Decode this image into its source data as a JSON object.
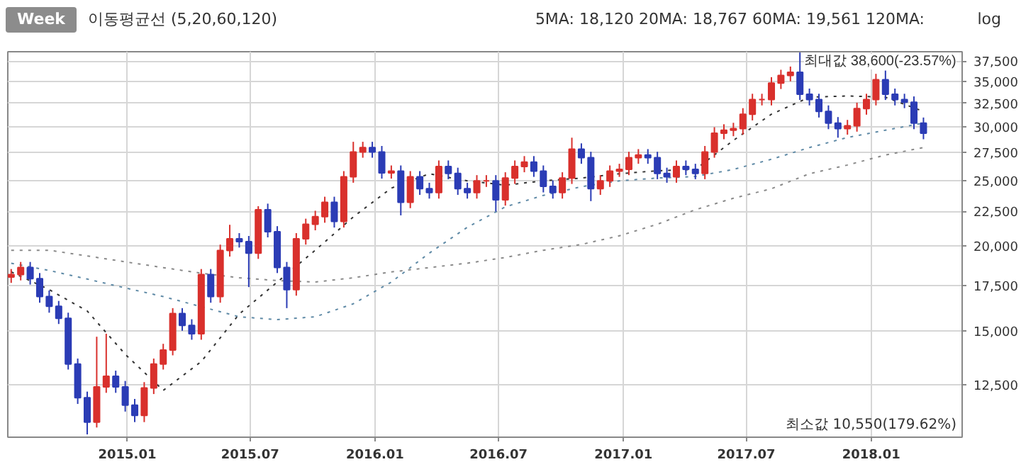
{
  "chart_data": {
    "type": "candlestick",
    "title": "이동평균선 (5,20,60,120)",
    "annotations": [
      "Week",
      "5MA: 18,120 20MA: 18,767 60MA: 19,561 120MA:",
      {
        "text": "최대값 38,600(-23.57%)",
        "x": "2017-09-18",
        "y": 38600
      },
      "최소값 10,550(179.62%)",
      "log"
    ],
    "x": [
      "2014-07-14",
      "2014-07-28",
      "2014-08-11",
      "2014-08-25",
      "2014-09-08",
      "2014-09-22",
      "2014-10-06",
      "2014-10-20",
      "2014-11-03",
      "2014-11-17",
      "2014-12-01",
      "2014-12-15",
      "2014-12-29",
      "2015-01-12",
      "2015-01-26",
      "2015-02-09",
      "2015-02-23",
      "2015-03-09",
      "2015-03-23",
      "2015-04-06",
      "2015-04-20",
      "2015-05-04",
      "2015-05-18",
      "2015-06-01",
      "2015-06-15",
      "2015-06-29",
      "2015-07-13",
      "2015-07-27",
      "2015-08-10",
      "2015-08-24",
      "2015-09-07",
      "2015-09-21",
      "2015-10-05",
      "2015-10-19",
      "2015-11-02",
      "2015-11-16",
      "2015-11-30",
      "2015-12-14",
      "2015-12-28",
      "2016-01-11",
      "2016-01-25",
      "2016-02-08",
      "2016-02-22",
      "2016-03-07",
      "2016-03-21",
      "2016-04-04",
      "2016-04-18",
      "2016-05-02",
      "2016-05-16",
      "2016-05-30",
      "2016-06-13",
      "2016-06-27",
      "2016-07-11",
      "2016-07-25",
      "2016-08-08",
      "2016-08-22",
      "2016-09-05",
      "2016-09-19",
      "2016-10-03",
      "2016-10-17",
      "2016-10-31",
      "2016-11-14",
      "2016-11-28",
      "2016-12-12",
      "2016-12-26",
      "2017-01-09",
      "2017-01-23",
      "2017-02-06",
      "2017-02-20",
      "2017-03-06",
      "2017-03-20",
      "2017-04-03",
      "2017-04-17",
      "2017-05-01",
      "2017-05-15",
      "2017-05-29",
      "2017-06-12",
      "2017-06-26",
      "2017-07-10",
      "2017-07-24",
      "2017-08-07",
      "2017-08-21",
      "2017-09-04",
      "2017-09-18",
      "2017-10-02",
      "2017-10-16",
      "2017-10-30",
      "2017-11-13",
      "2017-11-27",
      "2017-12-11",
      "2017-12-25",
      "2018-01-08",
      "2018-01-22",
      "2018-02-05",
      "2018-02-19",
      "2018-03-05",
      "2018-03-19"
    ],
    "ohlc": [
      [
        18000,
        18500,
        17650,
        18150
      ],
      [
        18150,
        18950,
        17800,
        18600
      ],
      [
        18600,
        18950,
        17550,
        17900
      ],
      [
        17900,
        18250,
        16500,
        16850
      ],
      [
        16850,
        17200,
        15950,
        16300
      ],
      [
        16300,
        16600,
        15350,
        15650
      ],
      [
        15650,
        15950,
        13150,
        13400
      ],
      [
        13400,
        13650,
        11700,
        11950
      ],
      [
        11950,
        12200,
        10550,
        11000
      ],
      [
        11000,
        14700,
        10800,
        12400
      ],
      [
        12400,
        14850,
        12150,
        12850
      ],
      [
        12850,
        13100,
        12150,
        12400
      ],
      [
        12400,
        12650,
        11400,
        11650
      ],
      [
        11650,
        11900,
        11000,
        11250
      ],
      [
        11250,
        12600,
        11000,
        12350
      ],
      [
        12350,
        13650,
        12100,
        13400
      ],
      [
        13400,
        14350,
        13150,
        14050
      ],
      [
        14050,
        16200,
        13800,
        15900
      ],
      [
        15900,
        16200,
        15000,
        15280
      ],
      [
        15280,
        15600,
        14550,
        14850
      ],
      [
        14850,
        18500,
        14550,
        18150
      ],
      [
        18150,
        18500,
        16500,
        16850
      ],
      [
        16850,
        20100,
        16500,
        19700
      ],
      [
        19700,
        21500,
        19300,
        20500
      ],
      [
        20500,
        20900,
        19900,
        20300
      ],
      [
        20300,
        20700,
        17400,
        19530
      ],
      [
        19530,
        22900,
        19150,
        22630
      ],
      [
        22630,
        23100,
        20600,
        21000
      ],
      [
        21000,
        21400,
        18250,
        18600
      ],
      [
        18600,
        18950,
        16200,
        17250
      ],
      [
        17250,
        20900,
        16900,
        20500
      ],
      [
        20500,
        21950,
        20100,
        21540
      ],
      [
        21540,
        22550,
        21100,
        22100
      ],
      [
        22100,
        23650,
        21650,
        23200
      ],
      [
        23200,
        23650,
        21300,
        21750
      ],
      [
        21750,
        25800,
        21300,
        25300
      ],
      [
        25300,
        28500,
        24800,
        27530
      ],
      [
        27530,
        28500,
        27000,
        27950
      ],
      [
        27950,
        28500,
        27000,
        27530
      ],
      [
        27530,
        28100,
        25150,
        25650
      ],
      [
        25650,
        26300,
        25150,
        25800
      ],
      [
        25800,
        26300,
        22200,
        23200
      ],
      [
        23200,
        25800,
        22750,
        25300
      ],
      [
        25300,
        25800,
        23800,
        24300
      ],
      [
        24300,
        24800,
        23500,
        23980
      ],
      [
        23980,
        26750,
        23500,
        26210
      ],
      [
        26210,
        26750,
        25100,
        25600
      ],
      [
        25600,
        26100,
        23800,
        24300
      ],
      [
        24300,
        24800,
        23500,
        23980
      ],
      [
        23980,
        25450,
        23500,
        24960
      ],
      [
        24960,
        25450,
        24450,
        24960
      ],
      [
        24960,
        25450,
        22500,
        23400
      ],
      [
        23400,
        25700,
        22950,
        25200
      ],
      [
        25200,
        26750,
        24700,
        26210
      ],
      [
        26210,
        27150,
        25700,
        26600
      ],
      [
        26600,
        27150,
        25300,
        25800
      ],
      [
        25800,
        26300,
        24000,
        24500
      ],
      [
        24500,
        25000,
        23500,
        23980
      ],
      [
        23980,
        25700,
        23500,
        25200
      ],
      [
        25200,
        28900,
        24700,
        27800
      ],
      [
        27800,
        28350,
        26450,
        27000
      ],
      [
        27000,
        27550,
        23300,
        24300
      ],
      [
        24300,
        25450,
        23800,
        24960
      ],
      [
        24960,
        26300,
        24450,
        25800
      ],
      [
        25800,
        26450,
        25300,
        25950
      ],
      [
        25950,
        27550,
        25450,
        27000
      ],
      [
        27000,
        27800,
        26450,
        27250
      ],
      [
        27250,
        27800,
        26450,
        27000
      ],
      [
        27000,
        27550,
        25100,
        25600
      ],
      [
        25600,
        26100,
        24800,
        25300
      ],
      [
        25300,
        26750,
        24800,
        26210
      ],
      [
        26210,
        26750,
        25450,
        25950
      ],
      [
        25950,
        26450,
        25100,
        25600
      ],
      [
        25600,
        28100,
        25100,
        27530
      ],
      [
        27530,
        29950,
        27000,
        29350
      ],
      [
        29350,
        30250,
        28750,
        29650
      ],
      [
        29650,
        30400,
        29050,
        29800
      ],
      [
        29800,
        31950,
        29200,
        31300
      ],
      [
        31300,
        33550,
        30650,
        32900
      ],
      [
        32900,
        33550,
        32250,
        32900
      ],
      [
        32900,
        35500,
        32250,
        34800
      ],
      [
        34800,
        36400,
        34100,
        35700
      ],
      [
        35700,
        36800,
        35000,
        36100
      ],
      [
        36100,
        38600,
        32850,
        33500
      ],
      [
        33500,
        34150,
        32250,
        32900
      ],
      [
        32900,
        33550,
        30950,
        31600
      ],
      [
        31600,
        32250,
        29750,
        30370
      ],
      [
        30370,
        31000,
        28900,
        29800
      ],
      [
        29800,
        30700,
        29200,
        30100
      ],
      [
        30100,
        32550,
        29500,
        31900
      ],
      [
        31900,
        33550,
        31250,
        32900
      ],
      [
        32900,
        35900,
        32250,
        35180
      ],
      [
        35180,
        36300,
        32850,
        33500
      ],
      [
        33500,
        34150,
        32250,
        32900
      ],
      [
        32900,
        33550,
        31950,
        32600
      ],
      [
        32600,
        33250,
        29750,
        30370
      ],
      [
        30370,
        30950,
        28750,
        29350
      ]
    ],
    "colors": [
      "#d9302c",
      "#d9302c",
      "#2b3cb5",
      "#2b3cb5",
      "#2b3cb5",
      "#2b3cb5",
      "#2b3cb5",
      "#2b3cb5",
      "#2b3cb5",
      "#d9302c",
      "#d9302c",
      "#2b3cb5",
      "#2b3cb5",
      "#2b3cb5",
      "#d9302c",
      "#d9302c",
      "#d9302c",
      "#d9302c",
      "#2b3cb5",
      "#2b3cb5",
      "#d9302c",
      "#2b3cb5",
      "#d9302c",
      "#d9302c",
      "#2b3cb5",
      "#2b3cb5",
      "#d9302c",
      "#2b3cb5",
      "#2b3cb5",
      "#2b3cb5",
      "#d9302c",
      "#d9302c",
      "#d9302c",
      "#d9302c",
      "#2b3cb5",
      "#d9302c",
      "#d9302c",
      "#d9302c",
      "#2b3cb5",
      "#2b3cb5",
      "#d9302c",
      "#2b3cb5",
      "#d9302c",
      "#2b3cb5",
      "#2b3cb5",
      "#d9302c",
      "#2b3cb5",
      "#2b3cb5",
      "#2b3cb5",
      "#d9302c",
      "#d9302c",
      "#2b3cb5",
      "#d9302c",
      "#d9302c",
      "#d9302c",
      "#2b3cb5",
      "#2b3cb5",
      "#2b3cb5",
      "#d9302c",
      "#d9302c",
      "#2b3cb5",
      "#2b3cb5",
      "#d9302c",
      "#d9302c",
      "#d9302c",
      "#d9302c",
      "#d9302c",
      "#2b3cb5",
      "#2b3cb5",
      "#2b3cb5",
      "#d9302c",
      "#2b3cb5",
      "#2b3cb5",
      "#d9302c",
      "#d9302c",
      "#d9302c",
      "#d9302c",
      "#d9302c",
      "#d9302c",
      "#d9302c",
      "#d9302c",
      "#d9302c",
      "#d9302c",
      "#2b3cb5",
      "#2b3cb5",
      "#2b3cb5",
      "#2b3cb5",
      "#2b3cb5",
      "#d9302c",
      "#d9302c",
      "#d9302c",
      "#d9302c",
      "#2b3cb5",
      "#2b3cb5",
      "#2b3cb5",
      "#2b3cb5",
      "#2b3cb5"
    ],
    "series": [
      {
        "type": "line",
        "color": "#333333",
        "line_style": "dotted",
        "x": [
          "2014-07-14",
          "2014-09-08",
          "2014-11-03",
          "2014-12-29",
          "2015-02-23",
          "2015-04-20",
          "2015-06-15",
          "2015-08-10",
          "2015-10-05",
          "2015-11-30",
          "2016-01-25",
          "2016-03-21",
          "2016-05-16",
          "2016-07-11",
          "2016-09-05",
          "2016-10-31",
          "2016-12-26",
          "2017-02-20",
          "2017-04-17",
          "2017-06-12",
          "2017-08-07",
          "2017-10-02",
          "2017-11-27",
          "2018-01-22",
          "2018-03-19"
        ],
        "values": [
          18320,
          17250,
          16040,
          13850,
          12250,
          13510,
          15880,
          17700,
          19720,
          22080,
          24350,
          25570,
          24960,
          24600,
          24960,
          25200,
          25570,
          25830,
          25950,
          28640,
          31300,
          33160,
          33300,
          33160,
          31600
        ]
      },
      {
        "type": "line",
        "color": "#5f8aa6",
        "line_style": "dotted",
        "x": [
          "2014-07-14",
          "2014-09-08",
          "2014-11-03",
          "2014-12-29",
          "2015-02-23",
          "2015-04-20",
          "2015-06-15",
          "2015-08-10",
          "2015-10-05",
          "2015-11-30",
          "2016-01-25",
          "2016-03-21",
          "2016-05-16",
          "2016-07-11",
          "2016-09-05",
          "2016-10-31",
          "2016-12-26",
          "2017-02-20",
          "2017-04-17",
          "2017-06-12",
          "2017-08-07",
          "2017-10-02",
          "2017-11-27",
          "2018-01-22",
          "2018-03-19"
        ],
        "values": [
          18870,
          18410,
          17880,
          17350,
          16850,
          16280,
          15730,
          15580,
          15730,
          16440,
          17700,
          19530,
          21320,
          22850,
          23760,
          24470,
          24960,
          25200,
          25330,
          25950,
          26860,
          27950,
          28920,
          29650,
          30370
        ]
      },
      {
        "type": "line",
        "color": "#8a8a8a",
        "line_style": "dotted",
        "x": [
          "2014-07-14",
          "2014-09-08",
          "2014-11-03",
          "2014-12-29",
          "2015-02-23",
          "2015-04-20",
          "2015-06-15",
          "2015-08-10",
          "2015-10-05",
          "2015-11-30",
          "2016-01-25",
          "2016-03-21",
          "2016-05-16",
          "2016-07-11",
          "2016-09-05",
          "2016-10-31",
          "2016-12-26",
          "2017-02-20",
          "2017-04-17",
          "2017-06-12",
          "2017-08-07",
          "2017-10-02",
          "2017-11-27",
          "2018-01-22",
          "2018-03-19"
        ],
        "values": [
          19720,
          19720,
          19340,
          18960,
          18590,
          18240,
          17960,
          17790,
          17700,
          17960,
          18320,
          18590,
          18870,
          19240,
          19720,
          20110,
          20710,
          21540,
          22630,
          23530,
          24300,
          25570,
          26340,
          27250,
          27950
        ]
      }
    ],
    "xlim": [
      "2014-07-09",
      "2018-05-15"
    ],
    "xticks": [
      {
        "value": "2015-01-01",
        "label": "2015.01"
      },
      {
        "value": "2015-07-01",
        "label": "2015.07"
      },
      {
        "value": "2016-01-01",
        "label": "2016.01"
      },
      {
        "value": "2016-07-01",
        "label": "2016.07"
      },
      {
        "value": "2017-01-01",
        "label": "2017.01"
      },
      {
        "value": "2017-07-01",
        "label": "2017.07"
      },
      {
        "value": "2018-01-01",
        "label": "2018.01"
      }
    ],
    "ylim": [
      10450,
      38700
    ],
    "yticks": [
      {
        "value": 12500,
        "label": "12,500"
      },
      {
        "value": 15000,
        "label": "15,000"
      },
      {
        "value": 17500,
        "label": "17,500"
      },
      {
        "value": 20000,
        "label": "20,000"
      },
      {
        "value": 22500,
        "label": "22,500"
      },
      {
        "value": 25000,
        "label": "25,000"
      },
      {
        "value": 27500,
        "label": "27,500"
      },
      {
        "value": 30000,
        "label": "30,000"
      },
      {
        "value": 32500,
        "label": "32,500"
      },
      {
        "value": 35000,
        "label": "35,000"
      },
      {
        "value": 37500,
        "label": "37,500"
      }
    ],
    "log": true,
    "grid": true
  }
}
